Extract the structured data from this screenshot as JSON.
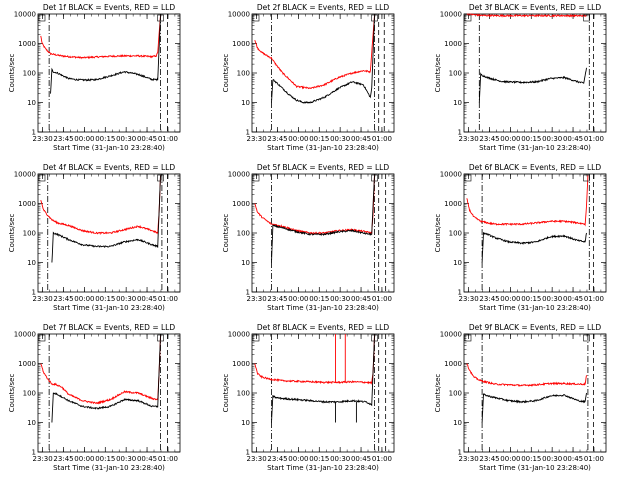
{
  "figure": {
    "shared_xlabel": "Start Time (31-Jan-10 23:28:40)",
    "ylabel": "Counts/sec",
    "legend_labels": [
      "BLACK = Events",
      "RED = LLD"
    ],
    "colors": {
      "events": "#000000",
      "lld": "#ff0000",
      "axes": "#000000"
    }
  },
  "chart_data": [
    {
      "type": "line",
      "title": "Det 1f BLACK = Events, RED = LLD",
      "xlabel": "Start Time (31-Jan-10 23:28:40)",
      "ylabel": "Counts/sec",
      "yscale": "log",
      "ylim": [
        1,
        10000
      ],
      "ytick_labels": [
        "1",
        "10",
        "100",
        "1000",
        "10000"
      ],
      "xlim": [
        -2,
        100
      ],
      "xtick_values": [
        1.33,
        16.33,
        31.33,
        46.33,
        61.33,
        76.33,
        91.33
      ],
      "xtick_labels": [
        "23:30",
        "23:45",
        "00:00",
        "00:15",
        "00:30",
        "00:45",
        "01:00"
      ],
      "dashdot_lines_x": [
        6,
        86
      ],
      "dashed_lines_x": [
        91
      ],
      "series": [
        {
          "name": "RED = LLD",
          "x": [
            0,
            1,
            3,
            5,
            7,
            10,
            15,
            20,
            30,
            40,
            50,
            60,
            70,
            80,
            83,
            84,
            86
          ],
          "values": [
            1800,
            1000,
            700,
            550,
            450,
            420,
            380,
            360,
            330,
            350,
            370,
            380,
            380,
            360,
            380,
            500,
            9000
          ]
        },
        {
          "name": "BLACK = Events",
          "x": [
            7,
            8,
            9,
            12,
            16,
            20,
            25,
            30,
            35,
            40,
            50,
            60,
            70,
            80,
            84,
            86
          ],
          "values": [
            20,
            130,
            110,
            100,
            80,
            65,
            60,
            58,
            58,
            60,
            80,
            110,
            90,
            60,
            60,
            9000
          ]
        }
      ]
    },
    {
      "type": "line",
      "title": "Det 2f BLACK = Events, RED = LLD",
      "xlabel": "Start Time (31-Jan-10 23:28:40)",
      "ylabel": "Counts/sec",
      "yscale": "log",
      "ylim": [
        1,
        10000
      ],
      "ytick_labels": [
        "1",
        "10",
        "100",
        "1000",
        "10000"
      ],
      "xlim": [
        -2,
        100
      ],
      "xtick_values": [
        1.33,
        16.33,
        31.33,
        46.33,
        61.33,
        76.33,
        91.33
      ],
      "xtick_labels": [
        "23:30",
        "23:45",
        "00:00",
        "00:15",
        "00:30",
        "00:45",
        "01:00"
      ],
      "dashdot_lines_x": [
        12,
        86
      ],
      "dashed_lines_x": [
        89,
        93
      ],
      "series": [
        {
          "name": "RED = LLD",
          "x": [
            0,
            2,
            5,
            9,
            12,
            15,
            20,
            25,
            30,
            40,
            50,
            60,
            70,
            78,
            83,
            84,
            86
          ],
          "values": [
            1300,
            700,
            500,
            380,
            320,
            200,
            100,
            60,
            35,
            30,
            40,
            70,
            100,
            120,
            110,
            500,
            9000
          ]
        },
        {
          "name": "BLACK = Events",
          "x": [
            12,
            13,
            15,
            20,
            25,
            30,
            35,
            40,
            50,
            60,
            70,
            78,
            83,
            84,
            86
          ],
          "values": [
            10,
            60,
            50,
            30,
            18,
            12,
            10,
            10,
            15,
            30,
            50,
            40,
            15,
            30,
            9000
          ]
        }
      ]
    },
    {
      "type": "line",
      "title": "Det 3f BLACK = Events, RED = LLD",
      "xlabel": "Start Time (31-Jan-10 23:28:40)",
      "ylabel": "Counts/sec",
      "yscale": "log",
      "ylim": [
        1,
        10000
      ],
      "ytick_labels": [
        "1",
        "10",
        "100",
        "1000",
        "10000"
      ],
      "xlim": [
        -2,
        100
      ],
      "xtick_values": [
        1.33,
        16.33,
        31.33,
        46.33,
        61.33,
        76.33,
        91.33
      ],
      "xtick_labels": [
        "23:30",
        "23:45",
        "00:00",
        "00:15",
        "00:30",
        "00:45",
        "01:00"
      ],
      "dashdot_lines_x": [
        9,
        88
      ],
      "dashed_lines_x": [
        91
      ],
      "series": [
        {
          "name": "RED = LLD",
          "x": [
            0,
            5,
            10,
            20,
            30,
            40,
            50,
            60,
            70,
            80,
            86
          ],
          "values": [
            10000,
            9500,
            9000,
            8800,
            8800,
            8800,
            8800,
            8800,
            8800,
            8700,
            8800
          ]
        },
        {
          "name": "BLACK = Events",
          "x": [
            9,
            10,
            12,
            15,
            20,
            25,
            30,
            40,
            50,
            60,
            70,
            80,
            84,
            86
          ],
          "values": [
            10,
            90,
            80,
            70,
            60,
            52,
            50,
            48,
            50,
            65,
            70,
            50,
            45,
            150
          ]
        }
      ]
    },
    {
      "type": "line",
      "title": "Det 4f BLACK = Events, RED = LLD",
      "xlabel": "Start Time (31-Jan-10 23:28:40)",
      "ylabel": "Counts/sec",
      "yscale": "log",
      "ylim": [
        1,
        10000
      ],
      "ytick_labels": [
        "1",
        "10",
        "100",
        "1000",
        "10000"
      ],
      "xlim": [
        -2,
        100
      ],
      "xtick_values": [
        1.33,
        16.33,
        31.33,
        46.33,
        61.33,
        76.33,
        91.33
      ],
      "xtick_labels": [
        "23:30",
        "23:45",
        "00:00",
        "00:15",
        "00:30",
        "00:45",
        "01:00"
      ],
      "dashdot_lines_x": [
        5,
        87
      ],
      "dashed_lines_x": [
        91
      ],
      "series": [
        {
          "name": "RED = LLD",
          "x": [
            0,
            2,
            5,
            8,
            12,
            20,
            30,
            40,
            50,
            60,
            70,
            80,
            84,
            85,
            86
          ],
          "values": [
            1300,
            600,
            400,
            280,
            220,
            180,
            120,
            100,
            100,
            130,
            170,
            120,
            100,
            500,
            9000
          ]
        },
        {
          "name": "BLACK = Events",
          "x": [
            8,
            9,
            12,
            20,
            30,
            40,
            50,
            60,
            70,
            80,
            84,
            86
          ],
          "values": [
            10,
            100,
            90,
            60,
            40,
            35,
            35,
            50,
            60,
            40,
            35,
            9000
          ]
        }
      ]
    },
    {
      "type": "line",
      "title": "Det 5f BLACK = Events, RED = LLD",
      "xlabel": "Start Time (31-Jan-10 23:28:40)",
      "ylabel": "Counts/sec",
      "yscale": "log",
      "ylim": [
        1,
        10000
      ],
      "ytick_labels": [
        "1",
        "10",
        "100",
        "1000",
        "10000"
      ],
      "xlim": [
        -2,
        100
      ],
      "xtick_values": [
        1.33,
        16.33,
        31.33,
        46.33,
        61.33,
        76.33,
        91.33
      ],
      "xtick_labels": [
        "23:30",
        "23:45",
        "00:00",
        "00:15",
        "00:30",
        "00:45",
        "01:00"
      ],
      "dashdot_lines_x": [
        12,
        86
      ],
      "dashed_lines_x": [
        89,
        94
      ],
      "series": [
        {
          "name": "RED = LLD",
          "x": [
            0,
            2,
            5,
            9,
            12,
            20,
            30,
            40,
            50,
            60,
            70,
            80,
            84,
            85,
            86
          ],
          "values": [
            1000,
            500,
            350,
            250,
            200,
            170,
            120,
            100,
            100,
            120,
            130,
            110,
            100,
            500,
            9000
          ]
        },
        {
          "name": "BLACK = Events",
          "x": [
            12,
            13,
            15,
            20,
            30,
            40,
            50,
            60,
            70,
            80,
            84,
            86
          ],
          "values": [
            10,
            180,
            170,
            150,
            110,
            90,
            90,
            110,
            120,
            95,
            90,
            9000
          ]
        }
      ]
    },
    {
      "type": "line",
      "title": "Det 6f BLACK = Events, RED = LLD",
      "xlabel": "Start Time (31-Jan-10 23:28:40)",
      "ylabel": "Counts/sec",
      "yscale": "log",
      "ylim": [
        1,
        10000
      ],
      "ytick_labels": [
        "1",
        "10",
        "100",
        "1000",
        "10000"
      ],
      "xlim": [
        -2,
        100
      ],
      "xtick_values": [
        1.33,
        16.33,
        31.33,
        46.33,
        61.33,
        76.33,
        91.33
      ],
      "xtick_labels": [
        "23:30",
        "23:45",
        "00:00",
        "00:15",
        "00:30",
        "00:45",
        "01:00"
      ],
      "dashdot_lines_x": [
        11,
        88
      ],
      "dashed_lines_x": [
        91
      ],
      "series": [
        {
          "name": "RED = LLD",
          "x": [
            0,
            2,
            5,
            10,
            15,
            20,
            30,
            40,
            50,
            60,
            70,
            80,
            85,
            86,
            87
          ],
          "values": [
            1500,
            600,
            350,
            250,
            220,
            200,
            200,
            200,
            220,
            250,
            250,
            220,
            200,
            800,
            9000
          ]
        },
        {
          "name": "BLACK = Events",
          "x": [
            11,
            12,
            15,
            20,
            30,
            40,
            50,
            60,
            70,
            80,
            85,
            86
          ],
          "values": [
            10,
            100,
            90,
            70,
            50,
            45,
            50,
            75,
            80,
            55,
            50,
            100
          ]
        }
      ]
    },
    {
      "type": "line",
      "title": "Det 7f BLACK = Events, RED = LLD",
      "xlabel": "Start Time (31-Jan-10 23:28:40)",
      "ylabel": "Counts/sec",
      "yscale": "log",
      "ylim": [
        1,
        10000
      ],
      "ytick_labels": [
        "1",
        "10",
        "100",
        "1000",
        "10000"
      ],
      "xlim": [
        -2,
        100
      ],
      "xtick_values": [
        1.33,
        16.33,
        31.33,
        46.33,
        61.33,
        76.33,
        91.33
      ],
      "xtick_labels": [
        "23:30",
        "23:45",
        "00:00",
        "00:15",
        "00:30",
        "00:45",
        "01:00"
      ],
      "dashdot_lines_x": [
        6,
        86
      ],
      "dashed_lines_x": [
        91
      ],
      "series": [
        {
          "name": "RED = LLD",
          "x": [
            0,
            2,
            5,
            8,
            10,
            15,
            20,
            30,
            40,
            50,
            60,
            70,
            80,
            84,
            85,
            86
          ],
          "values": [
            1000,
            500,
            300,
            200,
            200,
            160,
            90,
            55,
            45,
            60,
            110,
            100,
            65,
            60,
            500,
            9000
          ]
        },
        {
          "name": "BLACK = Events",
          "x": [
            8,
            9,
            12,
            20,
            30,
            40,
            50,
            60,
            70,
            80,
            84,
            86
          ],
          "values": [
            10,
            100,
            90,
            55,
            35,
            30,
            35,
            60,
            55,
            35,
            35,
            9000
          ]
        }
      ]
    },
    {
      "type": "line",
      "title": "Det 8f BLACK = Events, RED = LLD",
      "xlabel": "Start Time (31-Jan-10 23:28:40)",
      "ylabel": "Counts/sec",
      "yscale": "log",
      "ylim": [
        1,
        10000
      ],
      "ytick_labels": [
        "1",
        "10",
        "100",
        "1000",
        "10000"
      ],
      "xlim": [
        -2,
        100
      ],
      "xtick_values": [
        1.33,
        16.33,
        31.33,
        46.33,
        61.33,
        76.33,
        91.33
      ],
      "xtick_labels": [
        "23:30",
        "23:45",
        "00:00",
        "00:15",
        "00:30",
        "00:45",
        "01:00"
      ],
      "dashdot_lines_x": [
        12,
        86
      ],
      "dashed_lines_x": [
        89,
        94
      ],
      "series": [
        {
          "name": "RED = LLD",
          "x": [
            0,
            2,
            5,
            10,
            15,
            20,
            30,
            40,
            50,
            60,
            70,
            80,
            84,
            85,
            86
          ],
          "values": [
            1000,
            450,
            350,
            300,
            280,
            260,
            250,
            240,
            230,
            230,
            240,
            230,
            220,
            500,
            9000
          ]
        },
        {
          "name": "BLACK = Events",
          "x": [
            12,
            13,
            15,
            20,
            30,
            40,
            50,
            60,
            70,
            80,
            84,
            86
          ],
          "values": [
            10,
            80,
            70,
            65,
            60,
            55,
            50,
            50,
            55,
            50,
            40,
            9000
          ]
        }
      ],
      "spikes": [
        {
          "series": "RED = LLD",
          "x": 58,
          "values": [
            230,
            10000
          ]
        },
        {
          "series": "RED = LLD",
          "x": 65,
          "values": [
            230,
            10000
          ]
        },
        {
          "series": "BLACK = Events",
          "x": 58,
          "values": [
            10,
            50
          ]
        },
        {
          "series": "BLACK = Events",
          "x": 73,
          "values": [
            10,
            50
          ]
        }
      ]
    },
    {
      "type": "line",
      "title": "Det 9f BLACK = Events, RED = LLD",
      "xlabel": "Start Time (31-Jan-10 23:28:40)",
      "ylabel": "Counts/sec",
      "yscale": "log",
      "ylim": [
        1,
        10000
      ],
      "ytick_labels": [
        "1",
        "10",
        "100",
        "1000",
        "10000"
      ],
      "xlim": [
        -2,
        100
      ],
      "xtick_values": [
        1.33,
        16.33,
        31.33,
        46.33,
        61.33,
        76.33,
        91.33
      ],
      "xtick_labels": [
        "23:30",
        "23:45",
        "00:00",
        "00:15",
        "00:30",
        "00:45",
        "01:00"
      ],
      "dashdot_lines_x": [
        11,
        87
      ],
      "dashed_lines_x": [
        91
      ],
      "series": [
        {
          "name": "RED = LLD",
          "x": [
            0,
            2,
            5,
            10,
            15,
            20,
            30,
            40,
            50,
            60,
            70,
            80,
            85,
            86
          ],
          "values": [
            1000,
            600,
            350,
            260,
            230,
            200,
            190,
            180,
            190,
            210,
            210,
            200,
            200,
            400
          ]
        },
        {
          "name": "BLACK = Events",
          "x": [
            11,
            12,
            15,
            20,
            30,
            40,
            50,
            60,
            70,
            80,
            85,
            86
          ],
          "values": [
            10,
            90,
            80,
            70,
            55,
            50,
            55,
            80,
            85,
            55,
            50,
            100
          ]
        }
      ]
    }
  ]
}
